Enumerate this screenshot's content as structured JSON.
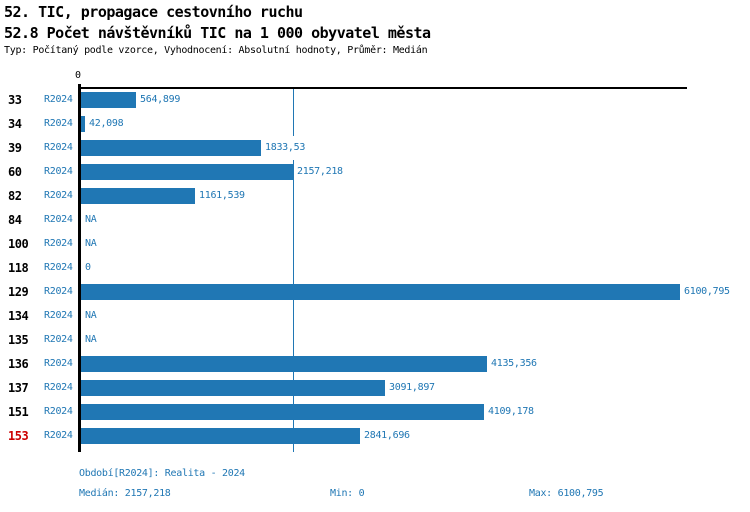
{
  "header": {
    "title1": "52. TIC, propagace cestovního ruchu",
    "title2": "52.8 Počet návštěvníků TIC na 1 000 obyvatel města",
    "subtitle": "Typ: Počítaný podle vzorce, Vyhodnocení: Absolutní hodnoty, Průměr: Medián"
  },
  "colors": {
    "bar_blue": "#2077b4",
    "text_blue": "#2077b4",
    "highlight_red": "#cc0000",
    "axis_black": "#000000"
  },
  "chart_data": {
    "type": "bar",
    "orientation": "horizontal",
    "axis_zero_label": "0",
    "series_label": "R2024",
    "categories": [
      "33",
      "34",
      "39",
      "60",
      "82",
      "84",
      "100",
      "118",
      "129",
      "134",
      "135",
      "136",
      "137",
      "151",
      "153"
    ],
    "values": [
      564.899,
      42.098,
      1833.53,
      2157.218,
      1161.539,
      null,
      null,
      0,
      6100.795,
      null,
      null,
      4135.356,
      3091.897,
      4109.178,
      2841.696
    ],
    "value_labels": [
      "564,899",
      "42,098",
      "1833,53",
      "2157,218",
      "1161,539",
      "NA",
      "NA",
      "0",
      "6100,795",
      "NA",
      "NA",
      "4135,356",
      "3091,897",
      "4109,178",
      "2841,696"
    ],
    "highlighted_categories": [
      "153"
    ],
    "xlim": [
      0,
      6100.795
    ],
    "median": 2157.218,
    "stats": {
      "median": 2157.218,
      "min": 0,
      "max": 6100.795
    },
    "grid": false,
    "legend_position": "none"
  },
  "footer": {
    "period": "Období[R2024]: Realita - 2024",
    "median": "Medián: 2157,218",
    "min": "Min: 0",
    "max": "Max: 6100,795"
  }
}
